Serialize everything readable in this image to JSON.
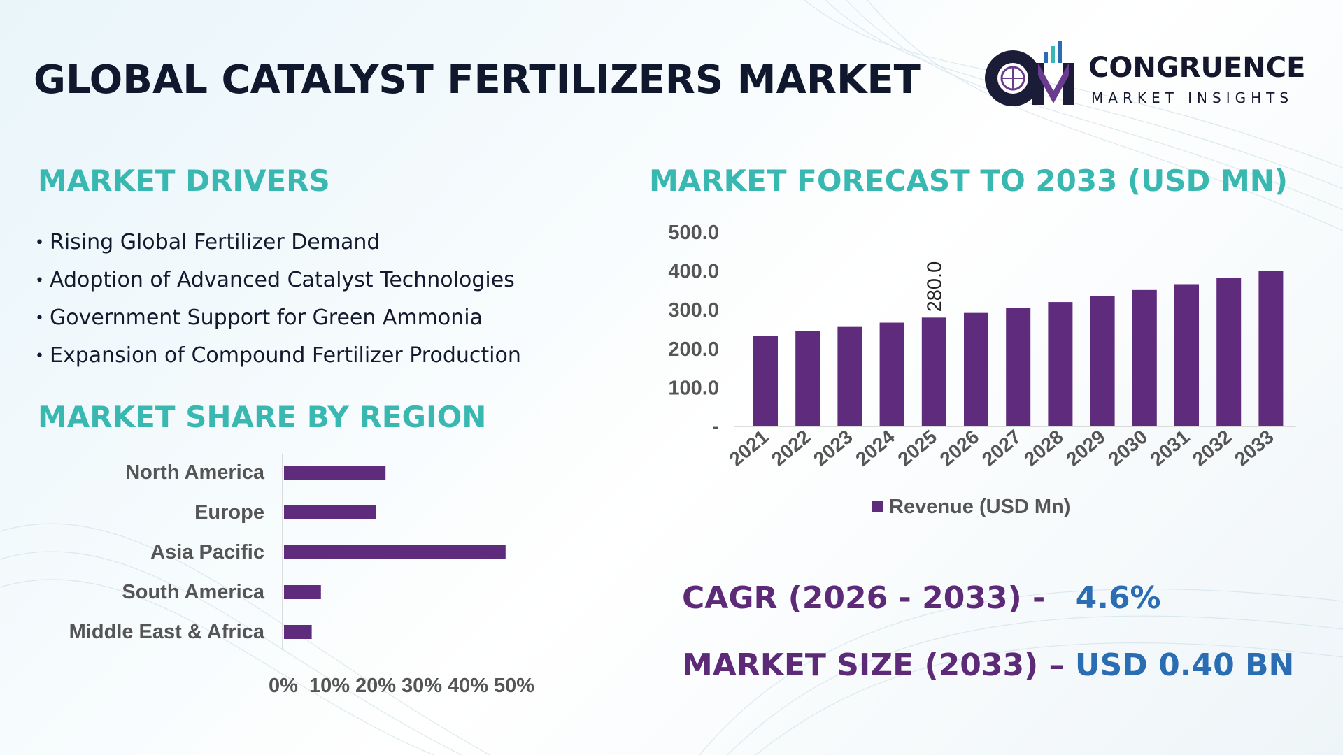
{
  "header": {
    "title": "GLOBAL CATALYST FERTILIZERS MARKET"
  },
  "logo": {
    "name": "CONGRUENCE",
    "tagline": "MARKET INSIGHTS",
    "mark": "CM"
  },
  "drivers": {
    "heading": "MARKET DRIVERS",
    "items": [
      "Rising Global Fertilizer Demand",
      "Adoption of Advanced Catalyst Technologies",
      "Government Support for Green Ammonia",
      "Expansion of Compound Fertilizer Production"
    ]
  },
  "region": {
    "heading": "MARKET SHARE BY REGION"
  },
  "forecast": {
    "heading": "MARKET FORECAST TO 2033 (USD MN)"
  },
  "stats": {
    "cagr_label": "CAGR (2026 - 2033) -",
    "cagr_value": "4.6%",
    "size_label": "MARKET SIZE (2033) –",
    "size_value": "USD 0.40 BN"
  },
  "colors": {
    "bar": "#5f2b7c",
    "heading": "#39b8b2",
    "title": "#10182e",
    "stat_label": "#5d2a78",
    "stat_value": "#2a6db3",
    "axis_text": "#555555"
  },
  "chart_data": [
    {
      "type": "bar",
      "orientation": "horizontal",
      "categories": [
        "North America",
        "Europe",
        "Asia Pacific",
        "South America",
        "Middle East & Africa"
      ],
      "values": [
        22,
        20,
        48,
        8,
        6
      ],
      "x_ticks": [
        "0%",
        "10%",
        "20%",
        "30%",
        "40%",
        "50%"
      ],
      "xlim": [
        0,
        50
      ],
      "grid": false,
      "legend": "none"
    },
    {
      "type": "bar",
      "categories": [
        "2021",
        "2022",
        "2023",
        "2024",
        "2025",
        "2026",
        "2027",
        "2028",
        "2029",
        "2030",
        "2031",
        "2032",
        "2033"
      ],
      "series": [
        {
          "name": "Revenue (USD Mn)",
          "values": [
            233,
            245,
            256,
            267,
            280,
            292,
            305,
            320,
            335,
            351,
            366,
            383,
            400
          ]
        }
      ],
      "y_ticks": [
        "-",
        "100.0",
        "200.0",
        "300.0",
        "400.0",
        "500.0"
      ],
      "ylim": [
        0,
        500
      ],
      "data_labels": [
        {
          "index": 4,
          "text": "280.0"
        }
      ],
      "grid": false,
      "legend": "bottom"
    }
  ]
}
